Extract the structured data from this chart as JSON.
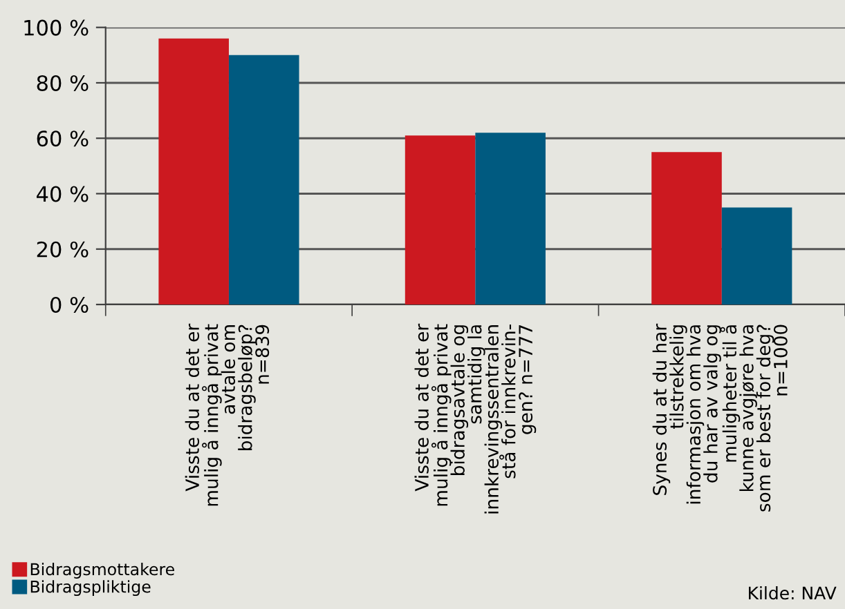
{
  "chart_data": {
    "type": "bar",
    "categories": [
      "Visste du at det er\nmulig å inngå privat\navtale om\nbidragsbeløp?\nn=839",
      "Visste du at det er\nmulig å inngå privat\nbidragsavtale og\nsamtidig la\ninnkrevingssentralen\nstå for innkrevin-\ngen? n=777",
      "Synes du at du har\ntilstrekkelig\ninformasjon om hva\ndu har av valg og\nmuligheter til å\nkunne avgjøre hva\nsom er best for deg?\nn=1000"
    ],
    "series": [
      {
        "name": "Bidragsmottakere",
        "color": "#cc1920",
        "values": [
          96,
          61,
          55
        ]
      },
      {
        "name": "Bidragspliktige",
        "color": "#005a80",
        "values": [
          90,
          62,
          35
        ]
      }
    ],
    "ylim": [
      0,
      100
    ],
    "yticks": [
      {
        "value": 0,
        "label": "0 %"
      },
      {
        "value": 20,
        "label": "20 %"
      },
      {
        "value": 40,
        "label": "40 %"
      },
      {
        "value": 60,
        "label": "60 %"
      },
      {
        "value": 80,
        "label": "80 %"
      },
      {
        "value": 100,
        "label": "100 %"
      }
    ],
    "grid": "y",
    "legend": "bottom left",
    "annotations": [
      "Kilde: NAV"
    ]
  }
}
